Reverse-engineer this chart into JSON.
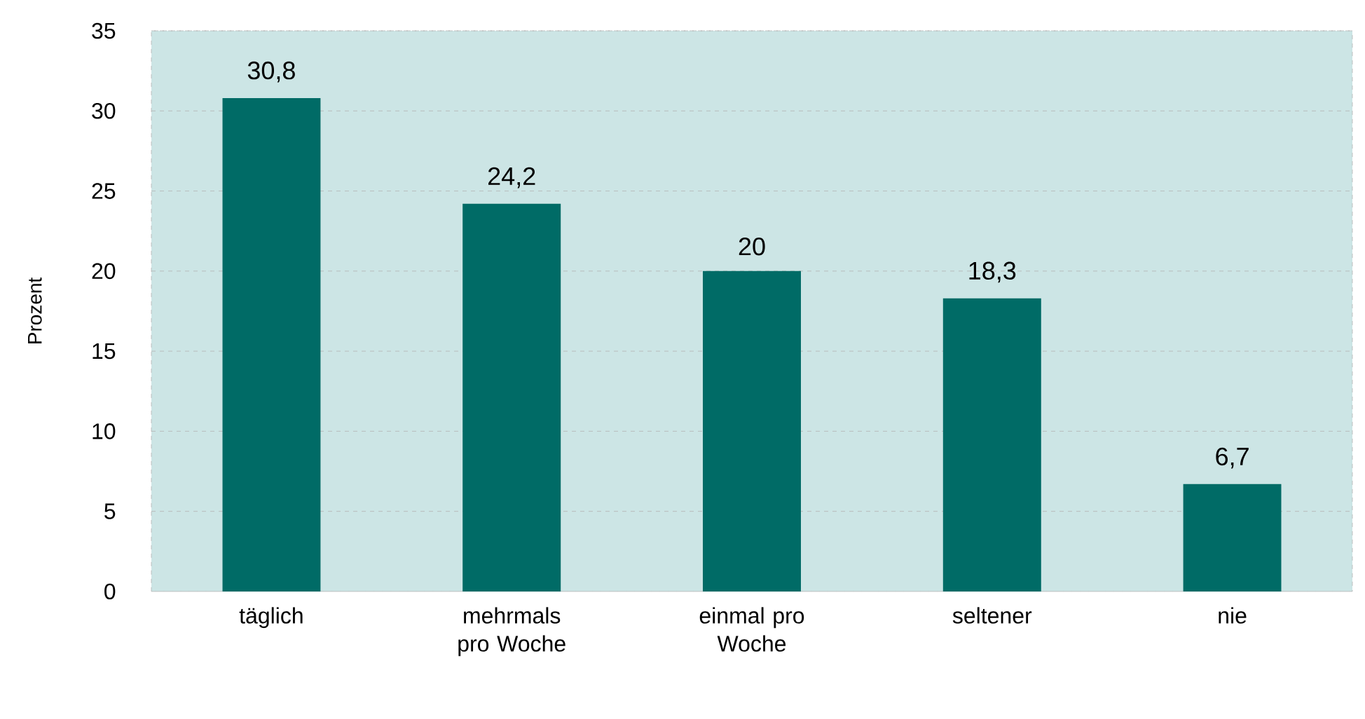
{
  "chart_data": {
    "type": "bar",
    "ylabel": "Prozent",
    "categories": [
      "täglich",
      "mehrmals pro Woche",
      "einmal pro Woche",
      "seltener",
      "nie"
    ],
    "values": [
      30.8,
      24.2,
      20,
      18.3,
      6.7
    ],
    "value_labels": [
      "30,8",
      "24,2",
      "20",
      "18,3",
      "6,7"
    ],
    "color": "#006b66",
    "ylim": [
      0,
      35
    ],
    "yticks": [
      0,
      5,
      10,
      15,
      20,
      25,
      30,
      35
    ],
    "grid": "y"
  }
}
